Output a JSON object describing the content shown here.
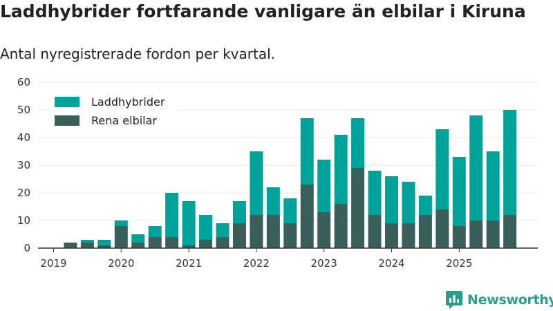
{
  "chart_data": {
    "type": "bar",
    "stacked": true,
    "title": "Laddhybrider fortfarande vanligare än elbilar i Kiruna",
    "subtitle": "Antal nyregistrerade fordon per kvartal.",
    "xlabel": "",
    "ylabel": "",
    "ylim": [
      0,
      60
    ],
    "yticks": [
      0,
      10,
      20,
      30,
      40,
      50,
      60
    ],
    "grid": true,
    "legend_position": "top-left",
    "year_ticks": [
      "2019",
      "2020",
      "2021",
      "2022",
      "2023",
      "2024",
      "2025"
    ],
    "categories": [
      "2019 Q1",
      "2019 Q2",
      "2019 Q3",
      "2019 Q4",
      "2020 Q1",
      "2020 Q2",
      "2020 Q3",
      "2020 Q4",
      "2021 Q1",
      "2021 Q2",
      "2021 Q3",
      "2021 Q4",
      "2022 Q1",
      "2022 Q2",
      "2022 Q3",
      "2022 Q4",
      "2023 Q1",
      "2023 Q2",
      "2023 Q3",
      "2023 Q4",
      "2024 Q1",
      "2024 Q2",
      "2024 Q3",
      "2024 Q4",
      "2025 Q1",
      "2025 Q2",
      "2025 Q3",
      "2025 Q4"
    ],
    "series": [
      {
        "name": "Rena elbilar",
        "color": "#3a5f5b",
        "values": [
          0,
          2,
          2,
          1,
          8,
          2,
          4,
          4,
          1,
          3,
          4,
          9,
          12,
          12,
          9,
          23,
          13,
          16,
          29,
          12,
          9,
          9,
          12,
          14,
          8,
          10,
          10,
          12
        ]
      },
      {
        "name": "Laddhybrider",
        "color": "#00a39a",
        "values": [
          0,
          0,
          1,
          2,
          2,
          3,
          4,
          16,
          16,
          9,
          5,
          8,
          23,
          10,
          9,
          24,
          19,
          25,
          18,
          16,
          17,
          15,
          7,
          29,
          25,
          38,
          25,
          38
        ]
      }
    ]
  },
  "legend": {
    "items": [
      "Laddhybrider",
      "Rena elbilar"
    ]
  },
  "brand": {
    "name": "Newsworthy",
    "color": "#2a9d8f"
  }
}
